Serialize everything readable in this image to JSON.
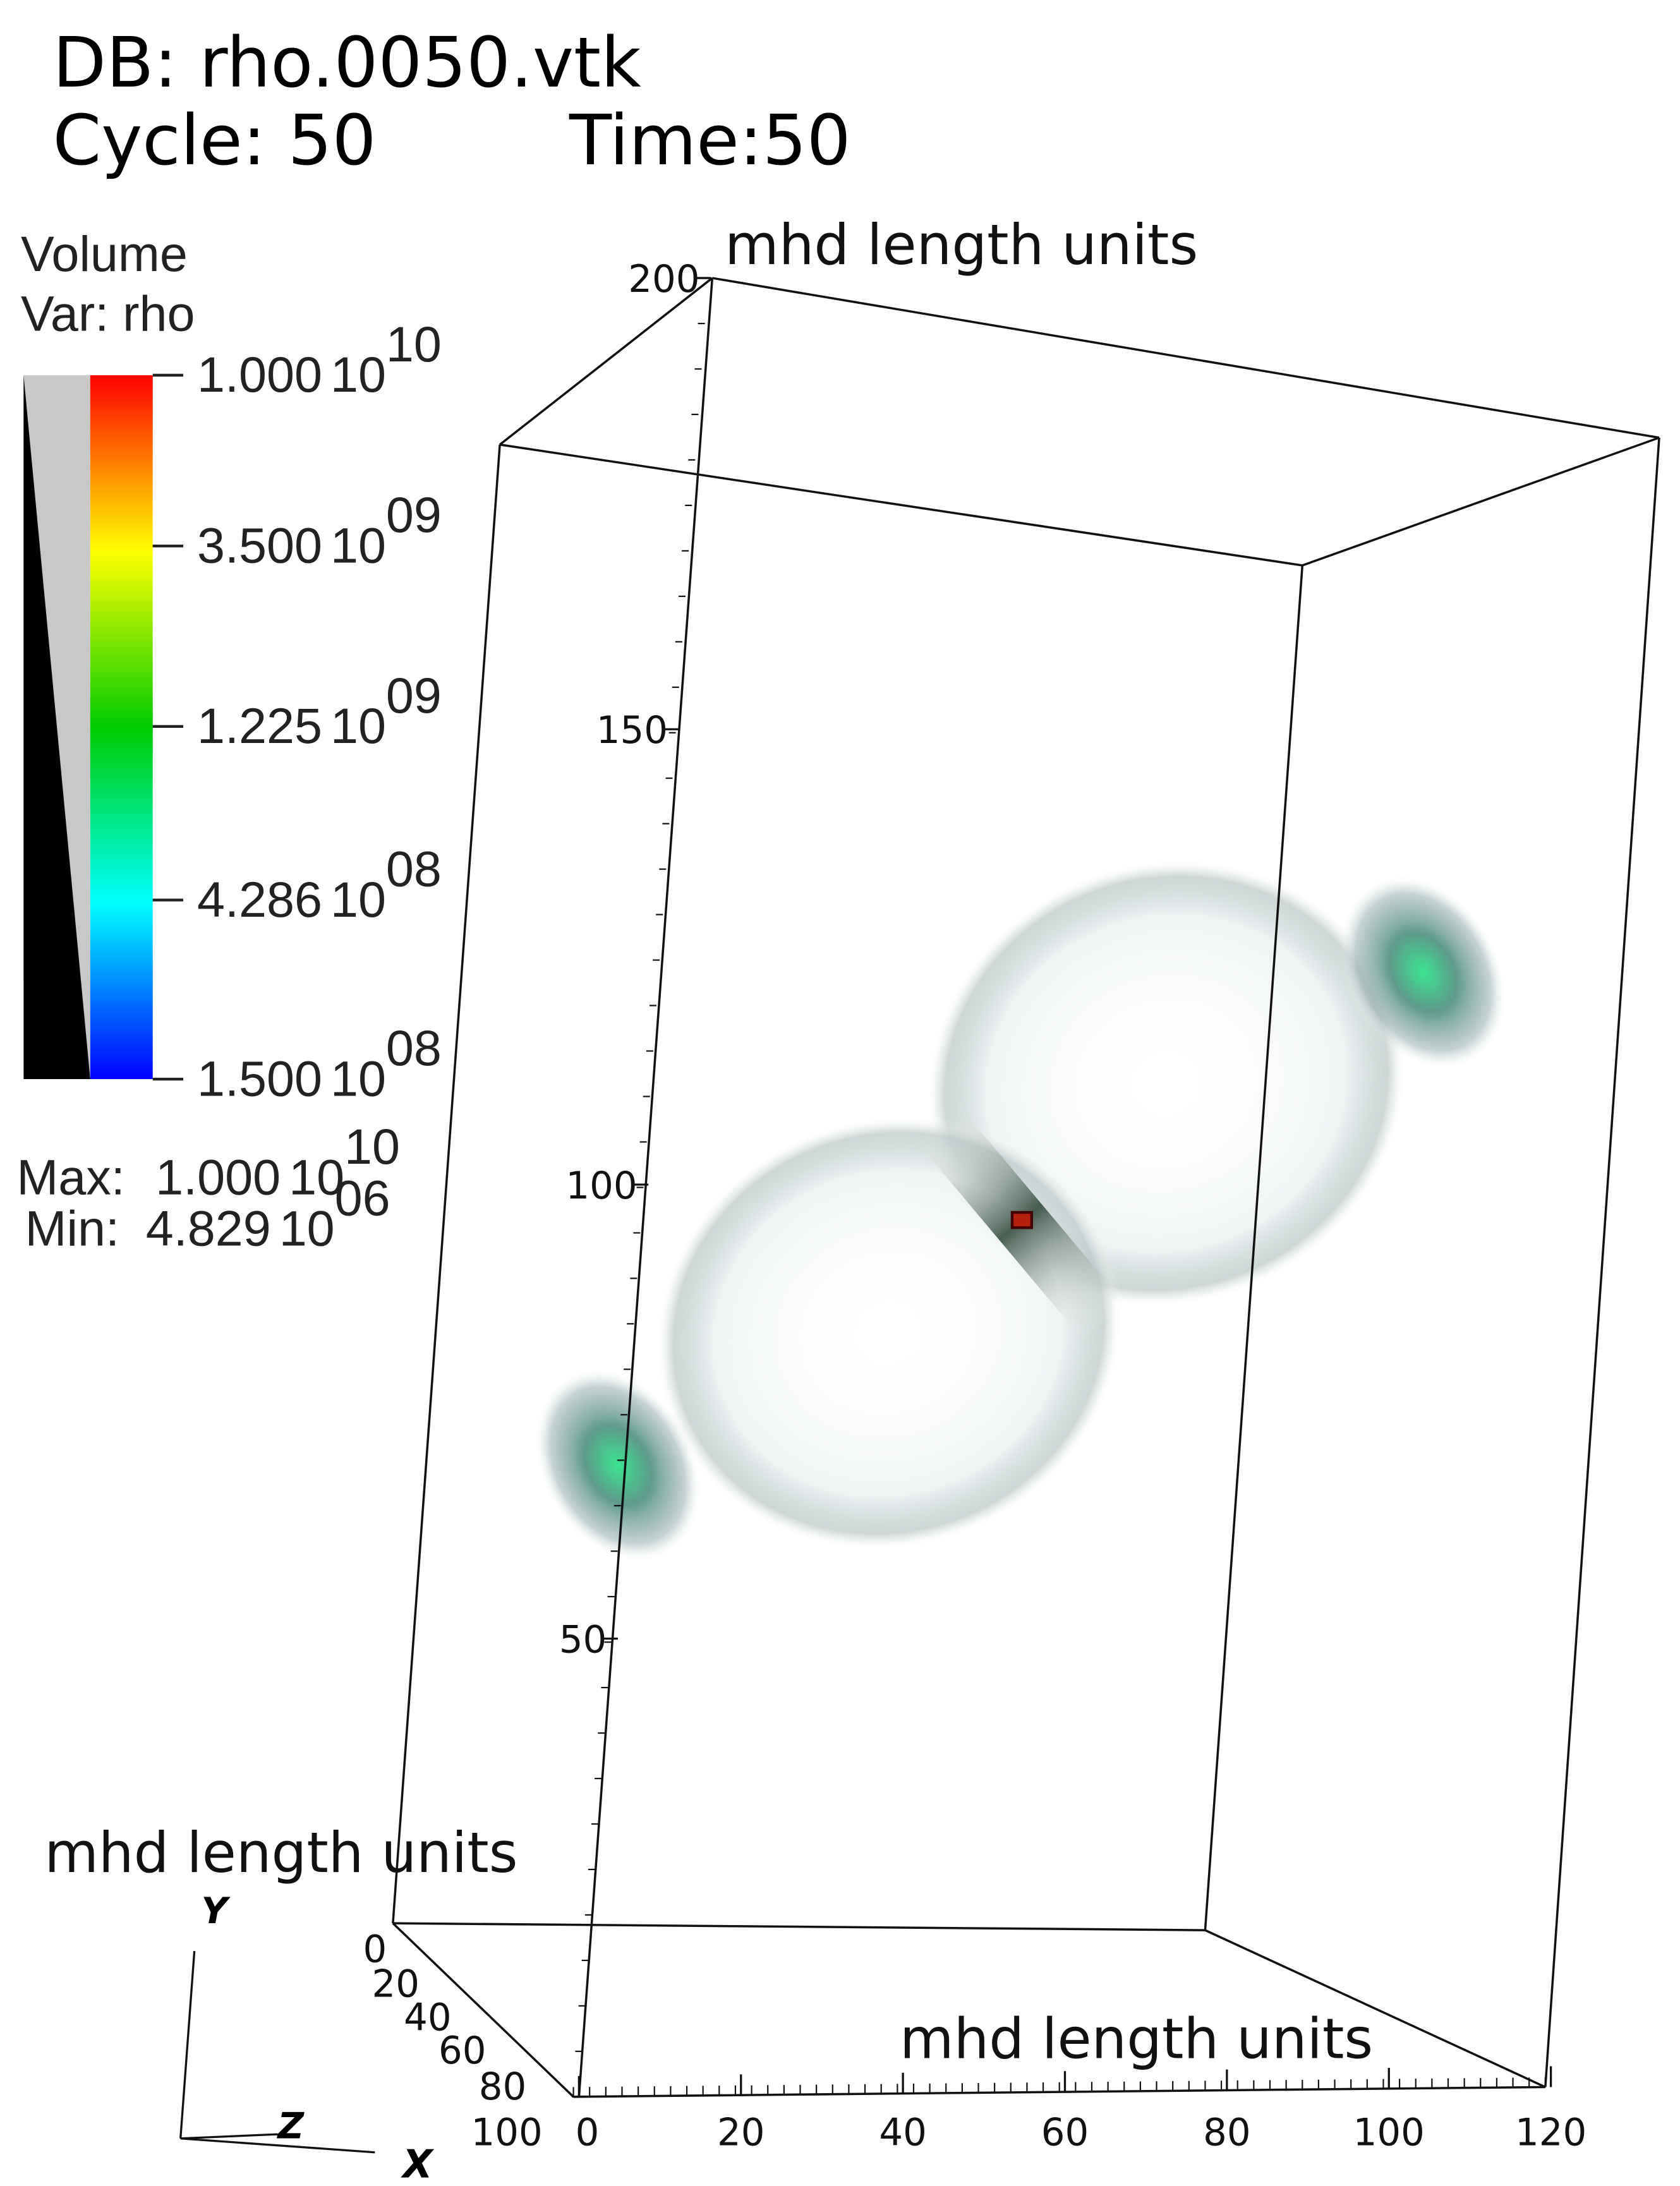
{
  "header": {
    "db": "DB: rho.0050.vtk",
    "cycle": "Cycle: 50",
    "time": "Time:50"
  },
  "legend": {
    "title": "Volume",
    "var": "Var: rho",
    "ticks": [
      {
        "mantissa": "1.000",
        "base": "10",
        "exponent": "10"
      },
      {
        "mantissa": "3.500",
        "base": "10",
        "exponent": "09"
      },
      {
        "mantissa": "1.225",
        "base": "10",
        "exponent": "09"
      },
      {
        "mantissa": "4.286",
        "base": "10",
        "exponent": "08"
      },
      {
        "mantissa": "1.500",
        "base": "10",
        "exponent": "08"
      }
    ],
    "max": {
      "label": "Max:",
      "mantissa": "1.000",
      "base": "10",
      "exponent": "10"
    },
    "min": {
      "label": "Min:",
      "mantissa": "4.829",
      "base": "10",
      "exponent": "06"
    }
  },
  "axes": {
    "y_title": "mhd length units",
    "y_ticks": [
      "200",
      "150",
      "100",
      "50"
    ],
    "x_title": "mhd length units",
    "x_ticks": [
      "0",
      "20",
      "40",
      "60",
      "80",
      "100",
      "120"
    ],
    "z_title": "mhd length units",
    "z_ticks": [
      "0",
      "20",
      "40",
      "60",
      "80",
      "100"
    ]
  },
  "triad": {
    "x": "X",
    "y": "Y",
    "z": "Z"
  }
}
